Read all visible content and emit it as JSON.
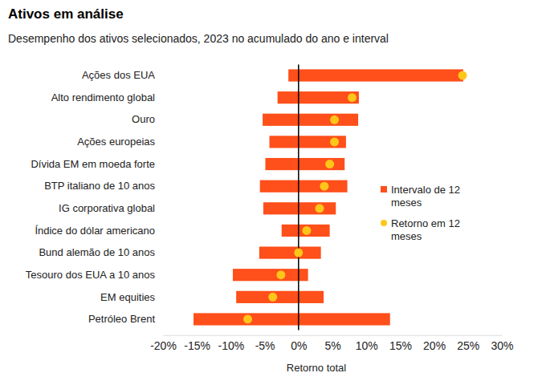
{
  "chart_data": {
    "type": "bar",
    "orientation": "horizontal",
    "title": "Ativos em análise",
    "subtitle": "Desempenho dos ativos selecionados, 2023 no acumulado do ano e interval",
    "x_label": "Retorno total",
    "categories": [
      "Ações dos EUA",
      "Alto rendimento global",
      "Ouro",
      "Ações europeias",
      "Dívida EM em moeda forte",
      "BTP italiano de 10 anos",
      "IG corporativa global",
      "Índice do dólar americano",
      "Bund alemão de 10 anos",
      "Tesouro dos EUA a 10 anos",
      "EM equities",
      "Petróleo Brent"
    ],
    "series": [
      {
        "name": "Intervalo de 12 meses",
        "type": "bar",
        "color": "#ff4f1a",
        "values": [
          [
            -1.5,
            24.3
          ],
          [
            -3.1,
            8.9
          ],
          [
            -5.3,
            8.8
          ],
          [
            -4.3,
            7.0
          ],
          [
            -4.9,
            6.8
          ],
          [
            -5.7,
            7.2
          ],
          [
            -5.2,
            5.5
          ],
          [
            -2.5,
            4.6
          ],
          [
            -5.8,
            3.3
          ],
          [
            -9.7,
            1.4
          ],
          [
            -9.2,
            3.7
          ],
          [
            -15.5,
            13.5
          ]
        ]
      },
      {
        "name": "Retorno em 12 meses",
        "type": "scatter",
        "marker": "circle",
        "color": "#ffc61a",
        "values": [
          24.2,
          7.9,
          5.3,
          5.3,
          4.6,
          3.8,
          3.1,
          1.2,
          0.0,
          -2.6,
          -3.8,
          -7.5
        ]
      }
    ],
    "xlim": [
      -20,
      30
    ],
    "xticks": [
      {
        "value": -20,
        "label": "-20%"
      },
      {
        "value": -15,
        "label": "-15%"
      },
      {
        "value": -10,
        "label": "-10%"
      },
      {
        "value": -5,
        "label": "-5%"
      },
      {
        "value": 0,
        "label": "0%"
      },
      {
        "value": 5,
        "label": "5%"
      },
      {
        "value": 10,
        "label": "10%"
      },
      {
        "value": 15,
        "label": "15%"
      },
      {
        "value": 20,
        "label": "20%"
      },
      {
        "value": 25,
        "label": "25%"
      },
      {
        "value": 30,
        "label": "30%"
      }
    ],
    "grid": false,
    "legend": "right"
  }
}
